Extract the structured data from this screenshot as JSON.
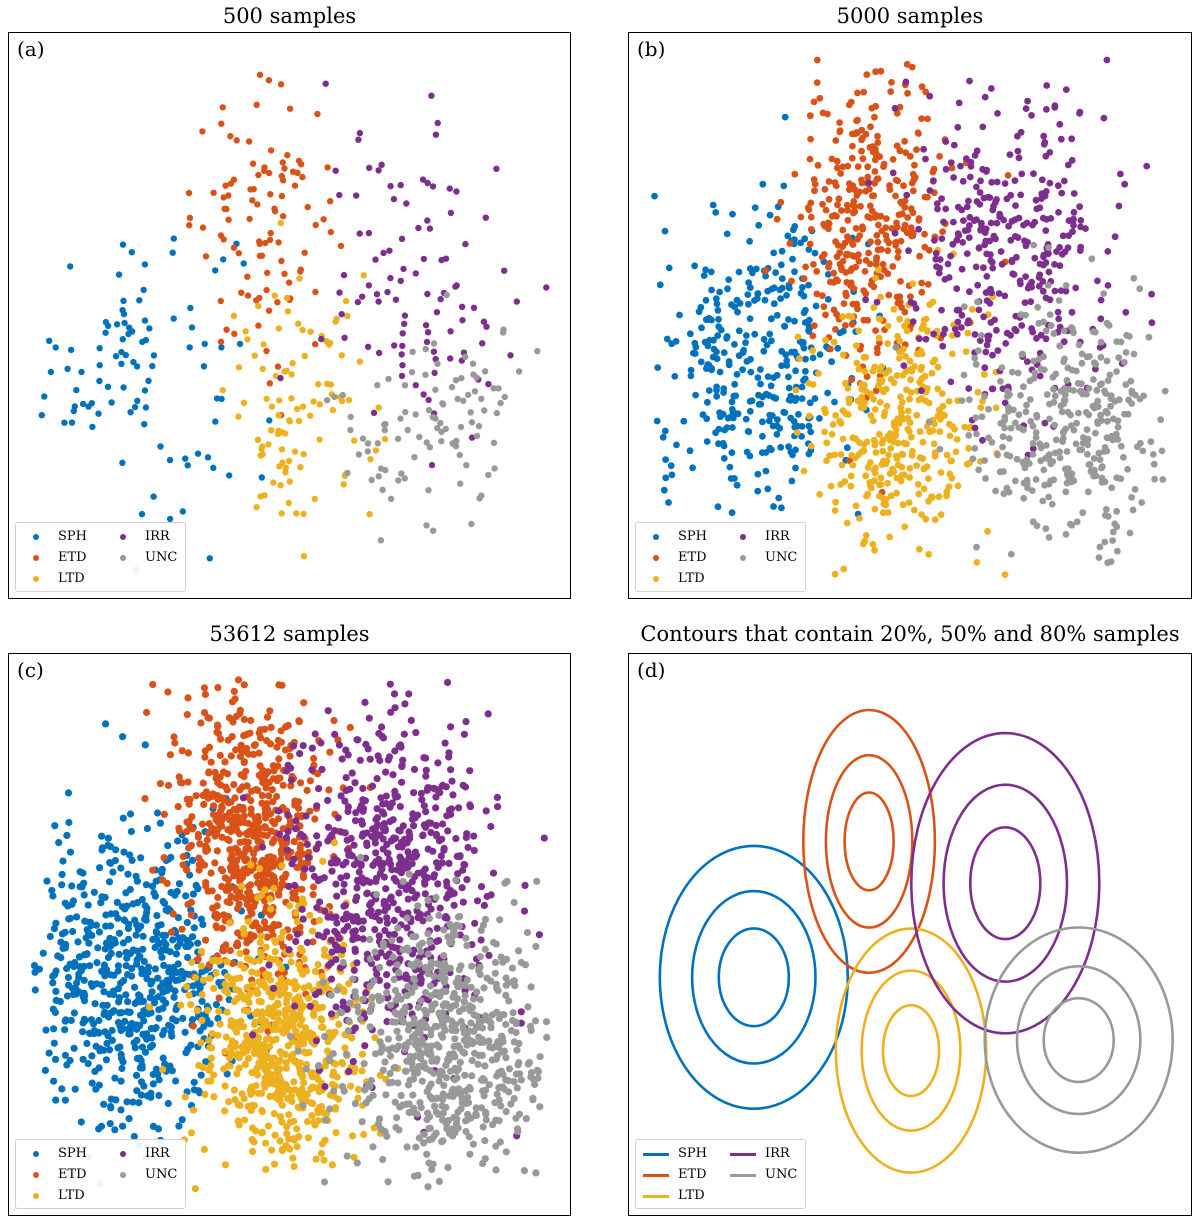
{
  "colors": {
    "SPH": "#0072bd",
    "ETD": "#d95319",
    "LTD": "#edb120",
    "IRR": "#7e2f8e",
    "UNC": "#999999"
  },
  "chart_data": [
    {
      "type": "scatter",
      "panel_label": "(a)",
      "title": "500 samples",
      "sample_count": 500,
      "legend": [
        "SPH",
        "ETD",
        "LTD",
        "IRR",
        "UNC"
      ],
      "legend_placement": "lower-left",
      "axes_visible": false,
      "xlim": [
        0,
        1
      ],
      "ylim": [
        0,
        1
      ],
      "clusters": [
        {
          "name": "SPH",
          "cx": 0.2,
          "cy": 0.42,
          "sx": 0.1,
          "sy": 0.14
        },
        {
          "name": "ETD",
          "cx": 0.45,
          "cy": 0.68,
          "sx": 0.07,
          "sy": 0.12
        },
        {
          "name": "LTD",
          "cx": 0.52,
          "cy": 0.32,
          "sx": 0.07,
          "sy": 0.12
        },
        {
          "name": "IRR",
          "cx": 0.74,
          "cy": 0.56,
          "sx": 0.09,
          "sy": 0.14
        },
        {
          "name": "UNC",
          "cx": 0.78,
          "cy": 0.3,
          "sx": 0.1,
          "sy": 0.1
        }
      ]
    },
    {
      "type": "scatter",
      "panel_label": "(b)",
      "title": "5000 samples",
      "sample_count": 5000,
      "legend": [
        "SPH",
        "ETD",
        "LTD",
        "IRR",
        "UNC"
      ],
      "legend_placement": "lower-left",
      "axes_visible": false,
      "xlim": [
        0,
        1
      ],
      "ylim": [
        0,
        1
      ],
      "clusters": [
        {
          "name": "SPH",
          "cx": 0.2,
          "cy": 0.42,
          "sx": 0.1,
          "sy": 0.14
        },
        {
          "name": "ETD",
          "cx": 0.42,
          "cy": 0.68,
          "sx": 0.07,
          "sy": 0.14
        },
        {
          "name": "LTD",
          "cx": 0.48,
          "cy": 0.3,
          "sx": 0.08,
          "sy": 0.12
        },
        {
          "name": "IRR",
          "cx": 0.68,
          "cy": 0.62,
          "sx": 0.1,
          "sy": 0.16
        },
        {
          "name": "UNC",
          "cx": 0.8,
          "cy": 0.3,
          "sx": 0.1,
          "sy": 0.12
        }
      ]
    },
    {
      "type": "scatter",
      "panel_label": "(c)",
      "title": "53612 samples",
      "sample_count": 53612,
      "legend": [
        "SPH",
        "ETD",
        "LTD",
        "IRR",
        "UNC"
      ],
      "legend_placement": "lower-left",
      "axes_visible": false,
      "xlim": [
        0,
        1
      ],
      "ylim": [
        0,
        1
      ],
      "clusters": [
        {
          "name": "SPH",
          "cx": 0.2,
          "cy": 0.42,
          "sx": 0.1,
          "sy": 0.14
        },
        {
          "name": "ETD",
          "cx": 0.42,
          "cy": 0.68,
          "sx": 0.07,
          "sy": 0.14
        },
        {
          "name": "LTD",
          "cx": 0.48,
          "cy": 0.3,
          "sx": 0.08,
          "sy": 0.12
        },
        {
          "name": "IRR",
          "cx": 0.68,
          "cy": 0.62,
          "sx": 0.1,
          "sy": 0.16
        },
        {
          "name": "UNC",
          "cx": 0.8,
          "cy": 0.3,
          "sx": 0.1,
          "sy": 0.12
        }
      ]
    },
    {
      "type": "contour",
      "panel_label": "(d)",
      "title": "Contours that contain 20%, 50% and 80% samples",
      "levels": [
        "20%",
        "50%",
        "80%"
      ],
      "legend": [
        "SPH",
        "ETD",
        "LTD",
        "IRR",
        "UNC"
      ],
      "legend_placement": "lower-left",
      "axes_visible": false,
      "xlim": [
        0,
        1
      ],
      "ylim": [
        0,
        1
      ],
      "clusters": [
        {
          "name": "SPH",
          "cx": 0.2,
          "cy": 0.42,
          "sx": 0.1,
          "sy": 0.14
        },
        {
          "name": "ETD",
          "cx": 0.42,
          "cy": 0.68,
          "sx": 0.07,
          "sy": 0.14
        },
        {
          "name": "LTD",
          "cx": 0.5,
          "cy": 0.28,
          "sx": 0.08,
          "sy": 0.13
        },
        {
          "name": "IRR",
          "cx": 0.68,
          "cy": 0.6,
          "sx": 0.1,
          "sy": 0.16
        },
        {
          "name": "UNC",
          "cx": 0.82,
          "cy": 0.3,
          "sx": 0.1,
          "sy": 0.12
        }
      ]
    }
  ]
}
